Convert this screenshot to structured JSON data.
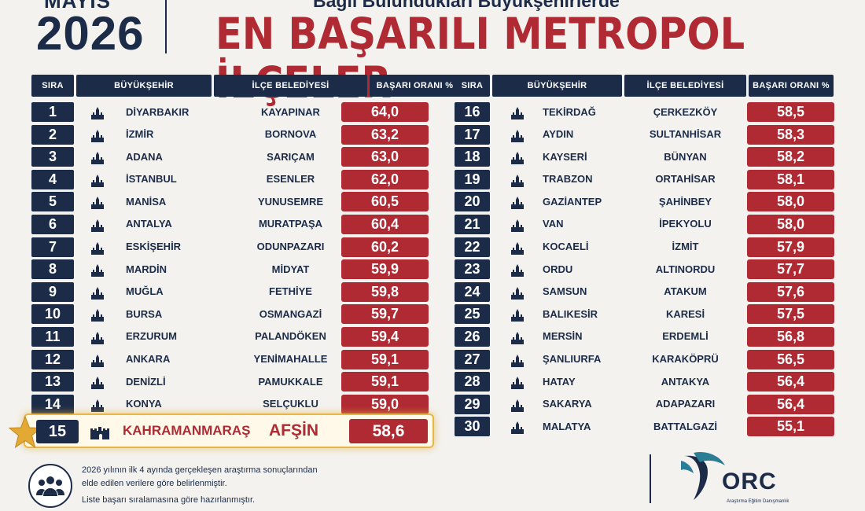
{
  "header": {
    "month": "MAYIS",
    "year": "2026",
    "subtitle": "Bağlı Bulundukları Büyükşehirlerde",
    "title": "EN BAŞARILI METROPOL İLÇELER"
  },
  "columns": {
    "rank": "SIRA",
    "city": "BÜYÜKŞEHİR",
    "district": "İLÇE BELEDİYESİ",
    "rate": "BAŞARI ORANI %"
  },
  "left_rows": [
    {
      "rank": "1",
      "city": "DİYARBAKIR",
      "district": "KAYAPINAR",
      "rate": "64,0",
      "icon": "city-walls-icon"
    },
    {
      "rank": "2",
      "city": "İZMİR",
      "district": "BORNOVA",
      "rate": "63,2",
      "icon": "clock-tower-icon"
    },
    {
      "rank": "3",
      "city": "ADANA",
      "district": "SARIÇAM",
      "rate": "63,0",
      "icon": "mosque-icon"
    },
    {
      "rank": "4",
      "city": "İSTANBUL",
      "district": "ESENLER",
      "rate": "62,0",
      "icon": "galata-tower-icon"
    },
    {
      "rank": "5",
      "city": "MANİSA",
      "district": "YUNUSEMRE",
      "rate": "60,5",
      "icon": "monument-icon"
    },
    {
      "rank": "6",
      "city": "ANTALYA",
      "district": "MURATPAŞA",
      "rate": "60,4",
      "icon": "gate-icon"
    },
    {
      "rank": "7",
      "city": "ESKİŞEHİR",
      "district": "ODUNPAZARI",
      "rate": "60,2",
      "icon": "houses-icon"
    },
    {
      "rank": "8",
      "city": "MARDİN",
      "district": "MİDYAT",
      "rate": "59,9",
      "icon": "stone-house-icon"
    },
    {
      "rank": "9",
      "city": "MUĞLA",
      "district": "FETHİYE",
      "rate": "59,8",
      "icon": "tombs-icon"
    },
    {
      "rank": "10",
      "city": "BURSA",
      "district": "OSMANGAZİ",
      "rate": "59,7",
      "icon": "mosque-icon"
    },
    {
      "rank": "11",
      "city": "ERZURUM",
      "district": "PALANDÖKEN",
      "rate": "59,4",
      "icon": "minarets-icon"
    },
    {
      "rank": "12",
      "city": "ANKARA",
      "district": "YENİMAHALLE",
      "rate": "59,1",
      "icon": "tower-icon"
    },
    {
      "rank": "13",
      "city": "DENİZLİ",
      "district": "PAMUKKALE",
      "rate": "59,1",
      "icon": "mosque-icon"
    },
    {
      "rank": "14",
      "city": "KONYA",
      "district": "SELÇUKLU",
      "rate": "59,0",
      "icon": "mosque-icon"
    }
  ],
  "highlight": {
    "rank": "15",
    "city": "KAHRAMANMARAŞ",
    "district": "AFŞİN",
    "rate": "58,6",
    "icon": "castle-icon"
  },
  "right_rows": [
    {
      "rank": "16",
      "city": "TEKİRDAĞ",
      "district": "ÇERKEZKÖY",
      "rate": "58,5",
      "icon": "tower-icon"
    },
    {
      "rank": "17",
      "city": "AYDIN",
      "district": "SULTANHİSAR",
      "rate": "58,3",
      "icon": "mosque-icon"
    },
    {
      "rank": "18",
      "city": "KAYSERİ",
      "district": "BÜNYAN",
      "rate": "58,2",
      "icon": "mosque-icon"
    },
    {
      "rank": "19",
      "city": "TRABZON",
      "district": "ORTAHİSAR",
      "rate": "58,1",
      "icon": "mosque-icon"
    },
    {
      "rank": "20",
      "city": "GAZİANTEP",
      "district": "ŞAHİNBEY",
      "rate": "58,0",
      "icon": "castle-icon"
    },
    {
      "rank": "21",
      "city": "VAN",
      "district": "İPEKYOLU",
      "rate": "58,0",
      "icon": "mountain-icon"
    },
    {
      "rank": "22",
      "city": "KOCAELİ",
      "district": "İZMİT",
      "rate": "57,9",
      "icon": "mosque-icon"
    },
    {
      "rank": "23",
      "city": "ORDU",
      "district": "ALTINORDU",
      "rate": "57,7",
      "icon": "mosque-icon"
    },
    {
      "rank": "24",
      "city": "SAMSUN",
      "district": "ATAKUM",
      "rate": "57,6",
      "icon": "mosque-icon"
    },
    {
      "rank": "25",
      "city": "BALIKESİR",
      "district": "KARESİ",
      "rate": "57,5",
      "icon": "houses-icon"
    },
    {
      "rank": "26",
      "city": "MERSİN",
      "district": "ERDEMLİ",
      "rate": "56,8",
      "icon": "mosque-icon"
    },
    {
      "rank": "27",
      "city": "ŞANLIURFA",
      "district": "KARAKÖPRÜ",
      "rate": "56,5",
      "icon": "mosque-icon"
    },
    {
      "rank": "28",
      "city": "HATAY",
      "district": "ANTAKYA",
      "rate": "56,4",
      "icon": "mosque-icon"
    },
    {
      "rank": "29",
      "city": "SAKARYA",
      "district": "ADAPAZARI",
      "rate": "56,4",
      "icon": "mosque-icon"
    },
    {
      "rank": "30",
      "city": "MALATYA",
      "district": "BATTALGAZİ",
      "rate": "55,1",
      "icon": "mosque-icon"
    }
  ],
  "footer": {
    "note1": "2026 yılının ilk 4 ayında gerçekleşen araştırma sonuçlarından",
    "note2": "elde edilen verilere göre belirlenmiştir.",
    "note3": "Liste başarı sıralamasına göre hazırlanmıştır.",
    "icon": "people-group-icon",
    "logo_text": "ORC",
    "logo_sub": "Araştırma Eğitim Danışmanlık"
  },
  "colors": {
    "navy": "#1c2c48",
    "red": "#b02a33",
    "gold": "#e7b64a"
  }
}
